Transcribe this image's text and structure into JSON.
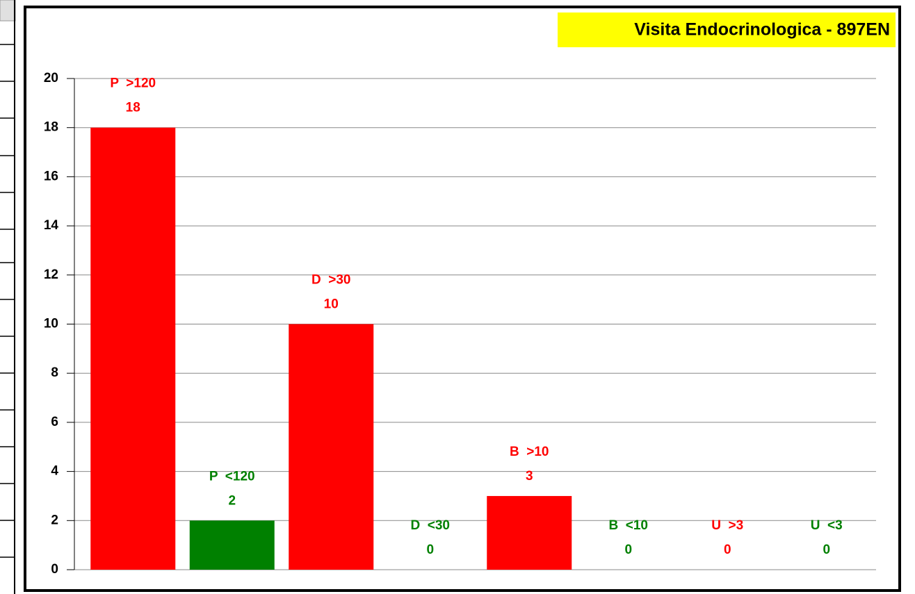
{
  "chart_data": {
    "type": "bar",
    "title": "Visita Endocrinologica - 897EN",
    "categories": [
      "P  >120",
      "P  <120",
      "D  >30",
      "D  <30",
      "B  >10",
      "B  <10",
      "U  >3",
      "U  <3"
    ],
    "values": [
      18,
      2,
      10,
      0,
      3,
      0,
      0,
      0
    ],
    "colors": [
      "#ff0000",
      "#008000",
      "#ff0000",
      "#008000",
      "#ff0000",
      "#008000",
      "#ff0000",
      "#008000"
    ],
    "ylim": [
      0,
      20
    ],
    "yticks": [
      0,
      2,
      4,
      6,
      8,
      10,
      12,
      14,
      16,
      18,
      20
    ],
    "grid": true
  }
}
